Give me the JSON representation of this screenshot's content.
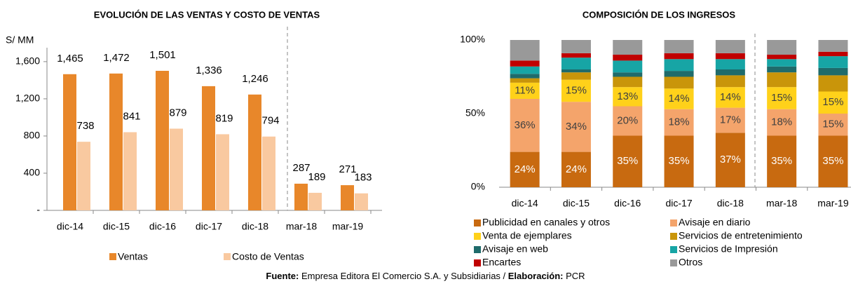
{
  "chart_data": [
    {
      "type": "bar",
      "title": "EVOLUCIÓN DE LAS VENTAS Y COSTO DE VENTAS",
      "y_label": "S/ MM",
      "categories": [
        "dic-14",
        "dic-15",
        "dic-16",
        "dic-17",
        "dic-18",
        "mar-18",
        "mar-19"
      ],
      "series": [
        {
          "name": "Ventas",
          "color": "#e8872a",
          "values": [
            1465,
            1472,
            1501,
            1336,
            1246,
            287,
            271
          ],
          "value_labels": [
            "1,465",
            "1,472",
            "1,501",
            "1,336",
            "1,246",
            "287",
            "271"
          ]
        },
        {
          "name": "Costo de Ventas",
          "color": "#f9c9a0",
          "values": [
            738,
            841,
            879,
            819,
            794,
            189,
            183
          ]
        }
      ],
      "ylim": [
        0,
        1750
      ],
      "yticks": [
        {
          "value": 0,
          "label": "-"
        },
        400,
        800,
        {
          "value": 1200,
          "label": "1,200"
        },
        {
          "value": 1600,
          "label": "1,600"
        }
      ]
    },
    {
      "type": "stacked_bar",
      "title": "COMPOSICIÓN DE LOS INGRESOS",
      "categories": [
        "dic-14",
        "dic-15",
        "dic-16",
        "dic-17",
        "dic-18",
        "mar-18",
        "mar-19"
      ],
      "series": [
        {
          "name": "Publicidad en canales y otros",
          "color": "#c86a10",
          "values": [
            24,
            24,
            35,
            35,
            37,
            35,
            35
          ],
          "value_labels": [
            "24%",
            "24%",
            "35%",
            "35%",
            "37%",
            "35%",
            "35%"
          ]
        },
        {
          "name": "Avisaje en diario",
          "color": "#f4a46b",
          "values": [
            36,
            34,
            20,
            18,
            17,
            18,
            15
          ],
          "value_labels": [
            "36%",
            "34%",
            "20%",
            "18%",
            "17%",
            "18%",
            "15%"
          ]
        },
        {
          "name": "Venta de ejemplares",
          "color": "#ffd11a",
          "values": [
            11,
            15,
            13,
            14,
            14,
            15,
            15
          ],
          "value_labels": [
            "11%",
            "15%",
            "13%",
            "14%",
            "14%",
            "15%",
            "15%"
          ]
        },
        {
          "name": "Servicios de entretenimiento",
          "color": "#c9950a",
          "values": [
            3,
            5,
            7,
            8,
            8,
            10,
            11
          ]
        },
        {
          "name": "Avisaje en web",
          "color": "#1f6b6b",
          "values": [
            3,
            2,
            3,
            4,
            4,
            4,
            5
          ]
        },
        {
          "name": "Servicios de Impresión",
          "color": "#17a5a5",
          "values": [
            5,
            8,
            8,
            8,
            7,
            5,
            8
          ]
        },
        {
          "name": "Encartes",
          "color": "#c00000",
          "values": [
            4,
            3,
            4,
            4,
            4,
            3,
            3
          ]
        },
        {
          "name": "Otros",
          "color": "#999999",
          "values": [
            14,
            9,
            10,
            9,
            9,
            10,
            8
          ]
        }
      ],
      "ylim": [
        0,
        100
      ],
      "yticks": [
        {
          "value": 0,
          "label": "0%"
        },
        {
          "value": 50,
          "label": "50%"
        },
        {
          "value": 100,
          "label": "100%"
        }
      ]
    }
  ],
  "source": [
    "Fuente:",
    " Empresa Editora El Comercio S.A. y Subsidiarias / ",
    "Elaboración:",
    " PCR"
  ]
}
